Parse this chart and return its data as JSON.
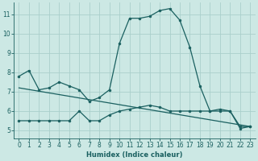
{
  "x": [
    0,
    1,
    2,
    3,
    4,
    5,
    6,
    7,
    8,
    9,
    10,
    11,
    12,
    13,
    14,
    15,
    16,
    17,
    18,
    19,
    20,
    21,
    22,
    23
  ],
  "line1": [
    7.8,
    8.1,
    7.1,
    7.2,
    7.5,
    7.3,
    7.1,
    6.5,
    6.7,
    7.1,
    9.5,
    10.8,
    10.8,
    10.9,
    11.2,
    11.3,
    10.7,
    9.3,
    7.3,
    6.0,
    6.1,
    6.0,
    5.1,
    5.2
  ],
  "line2": [
    5.5,
    5.5,
    5.5,
    5.5,
    5.5,
    5.5,
    6.0,
    5.5,
    5.5,
    5.8,
    6.0,
    6.1,
    6.2,
    6.3,
    6.2,
    6.0,
    6.0,
    6.0,
    6.0,
    6.0,
    6.0,
    6.0,
    5.2,
    5.2
  ],
  "line3_x": [
    0,
    23
  ],
  "line3_y": [
    7.2,
    5.2
  ],
  "background_color": "#cce8e4",
  "grid_color": "#aacfcb",
  "line_color": "#1a6060",
  "xlabel": "Humidex (Indice chaleur)",
  "ylim": [
    4.6,
    11.6
  ],
  "xlim": [
    -0.5,
    23.5
  ],
  "yticks": [
    5,
    6,
    7,
    8,
    9,
    10,
    11
  ],
  "xticks": [
    0,
    1,
    2,
    3,
    4,
    5,
    6,
    7,
    8,
    9,
    10,
    11,
    12,
    13,
    14,
    15,
    16,
    17,
    18,
    19,
    20,
    21,
    22,
    23
  ],
  "figwidth": 3.2,
  "figheight": 2.0,
  "dpi": 100
}
